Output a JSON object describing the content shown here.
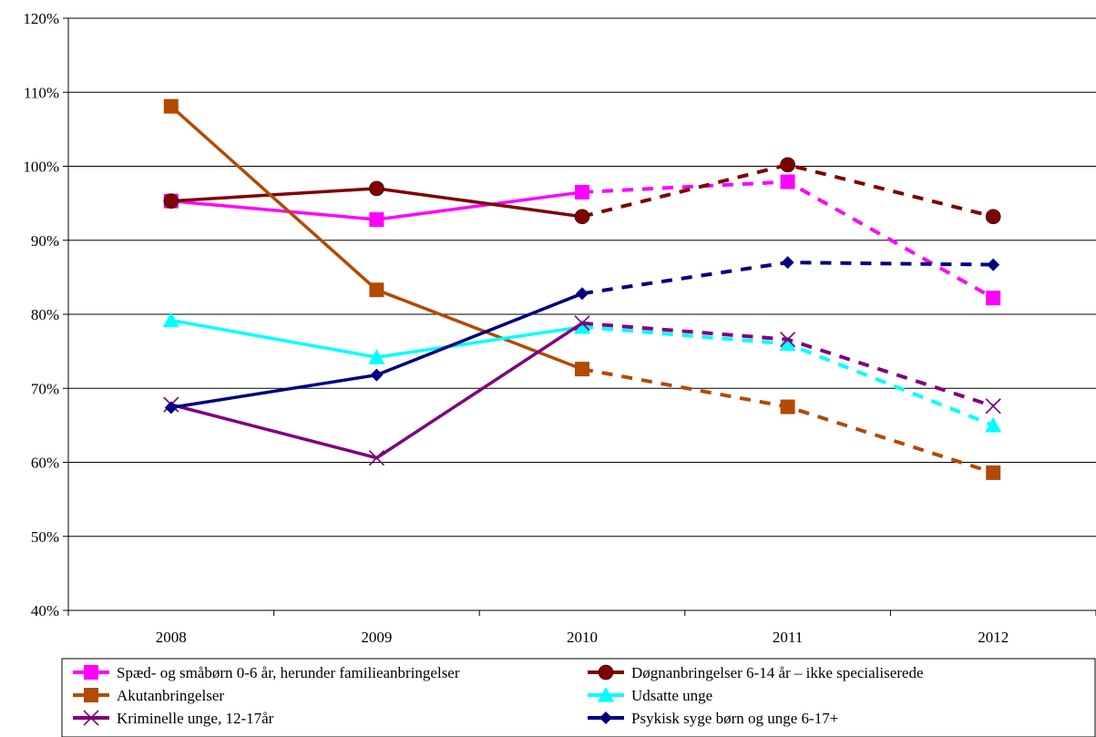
{
  "chart_data": {
    "type": "line",
    "title": "",
    "xlabel": "",
    "ylabel": "",
    "categories": [
      "2008",
      "2009",
      "2010",
      "2011",
      "2012"
    ],
    "ylim": [
      40,
      120
    ],
    "yticks": [
      40,
      50,
      60,
      70,
      80,
      90,
      100,
      110,
      120
    ],
    "ytick_labels": [
      "40%",
      "50%",
      "60%",
      "70%",
      "80%",
      "90%",
      "100%",
      "110%",
      "120%"
    ],
    "grid": "horizontal",
    "legend_position": "bottom",
    "solid_through": "2010",
    "dashed_from": "2010",
    "series": [
      {
        "name": "Spæd- og småbørn 0-6 år, herunder familieanbringelser",
        "values": [
          95.3,
          92.8,
          96.5,
          97.9,
          82.2
        ],
        "color": "#FF00FF",
        "marker": "square"
      },
      {
        "name": "Døgnanbringelser 6-14 år – ikke specialiserede",
        "values": [
          95.3,
          97.0,
          93.2,
          100.2,
          93.2
        ],
        "color": "#800000",
        "marker": "circle"
      },
      {
        "name": "Akutanbringelser",
        "values": [
          108.1,
          83.3,
          72.6,
          67.5,
          58.6
        ],
        "color": "#B34A00",
        "marker": "square"
      },
      {
        "name": "Udsatte unge",
        "values": [
          79.2,
          74.2,
          78.3,
          76.0,
          65.0
        ],
        "color": "#00FFFF",
        "marker": "triangle"
      },
      {
        "name": "Kriminelle unge, 12-17år",
        "values": [
          67.8,
          60.6,
          78.8,
          76.6,
          67.6
        ],
        "color": "#800080",
        "marker": "x"
      },
      {
        "name": "Psykisk syge børn og unge 6-17+",
        "values": [
          67.4,
          71.8,
          82.8,
          87.0,
          86.7
        ],
        "color": "#000080",
        "marker": "diamond"
      }
    ]
  }
}
